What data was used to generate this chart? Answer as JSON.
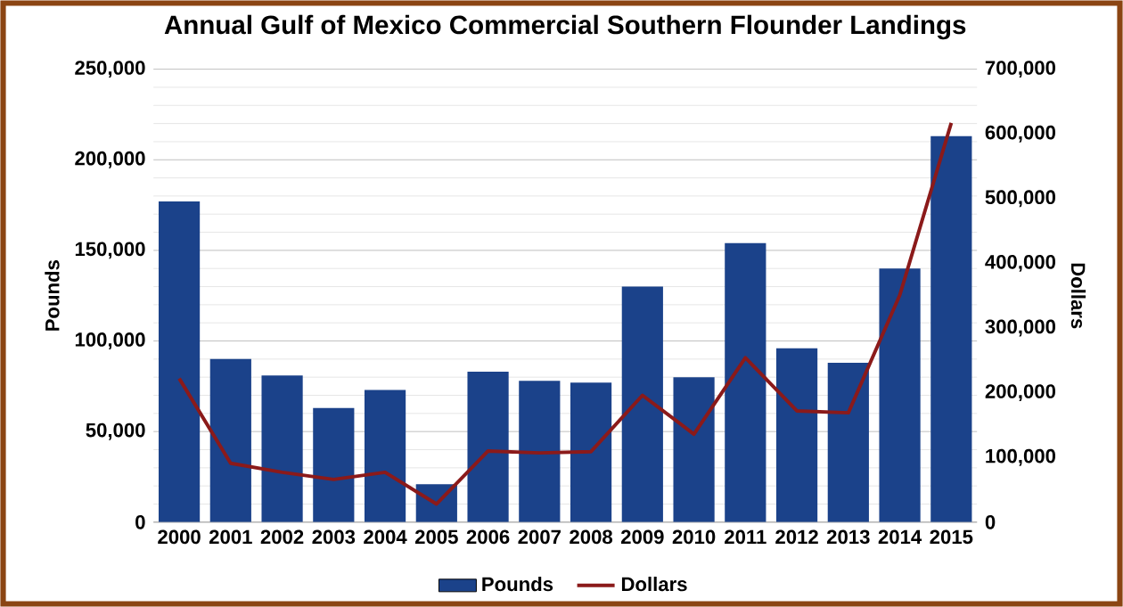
{
  "chart_data": {
    "type": "bar",
    "title": "Annual Gulf of Mexico Commercial Southern Flounder Landings",
    "categories": [
      "2000",
      "2001",
      "2002",
      "2003",
      "2004",
      "2005",
      "2006",
      "2007",
      "2008",
      "2009",
      "2010",
      "2011",
      "2012",
      "2013",
      "2014",
      "2015"
    ],
    "series": [
      {
        "name": "Pounds",
        "color": "#1b428a",
        "values": [
          177000,
          90000,
          81000,
          63000,
          73000,
          21000,
          83000,
          78000,
          77000,
          130000,
          80000,
          154000,
          96000,
          88000,
          140000,
          213000
        ]
      },
      {
        "name": "Dollars",
        "type": "line",
        "axis": "y2",
        "color": "#8b1a1a",
        "values": [
          222000,
          91000,
          77000,
          66000,
          77000,
          28000,
          110000,
          107000,
          109000,
          196000,
          136000,
          254000,
          172000,
          169000,
          351000,
          617000
        ]
      }
    ],
    "ylabel": "Pounds",
    "y2label": "Dollars",
    "ylim": [
      0,
      250000
    ],
    "yticks": [
      {
        "value": 0,
        "label": "0"
      },
      {
        "value": 50000,
        "label": "50,000"
      },
      {
        "value": 100000,
        "label": "100,000"
      },
      {
        "value": 150000,
        "label": "150,000"
      },
      {
        "value": 200000,
        "label": "200,000"
      },
      {
        "value": 250000,
        "label": "250,000"
      }
    ],
    "y2lim": [
      0,
      700000
    ],
    "y2ticks": [
      {
        "value": 0,
        "label": "0"
      },
      {
        "value": 100000,
        "label": "100,000"
      },
      {
        "value": 200000,
        "label": "200,000"
      },
      {
        "value": 300000,
        "label": "300,000"
      },
      {
        "value": 400000,
        "label": "400,000"
      },
      {
        "value": 500000,
        "label": "500,000"
      },
      {
        "value": 600000,
        "label": "600,000"
      },
      {
        "value": 700000,
        "label": "700,000"
      }
    ],
    "grid": "y",
    "legend": "bottom",
    "marker": "none",
    "line_style": "solid"
  }
}
